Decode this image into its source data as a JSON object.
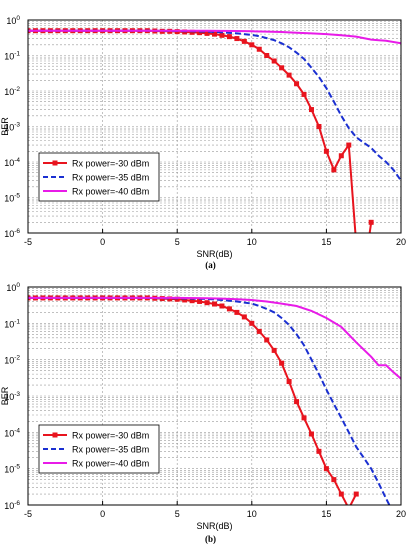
{
  "chart_data": [
    {
      "type": "line",
      "caption": "(a)",
      "xlabel": "SNR(dB)",
      "ylabel": "BER",
      "xlim": [
        -5,
        20
      ],
      "ylim": [
        1e-06,
        1
      ],
      "yscale": "log",
      "xticks": [
        -5,
        0,
        5,
        10,
        15,
        20
      ],
      "yticks": [
        {
          "value": 1,
          "label": "10",
          "exp": "0"
        },
        {
          "value": 0.1,
          "label": "10",
          "exp": "-1"
        },
        {
          "value": 0.01,
          "label": "10",
          "exp": "-2"
        },
        {
          "value": 0.001,
          "label": "10",
          "exp": "-3"
        },
        {
          "value": 0.0001,
          "label": "10",
          "exp": "-4"
        },
        {
          "value": 1e-05,
          "label": "10",
          "exp": "-5"
        },
        {
          "value": 1e-06,
          "label": "10",
          "exp": "-6"
        }
      ],
      "grid": true,
      "legend_position": "lower-left",
      "series": [
        {
          "name": "Rx power=-30 dBm",
          "color": "#e8141e",
          "style": "solid",
          "marker": "square",
          "x": [
            -5,
            -4.5,
            -4,
            -3.5,
            -3,
            -2.5,
            -2,
            -1.5,
            -1,
            -0.5,
            0,
            0.5,
            1,
            1.5,
            2,
            2.5,
            3,
            3.5,
            4,
            4.5,
            5,
            5.5,
            6,
            6.5,
            7,
            7.5,
            8,
            8.5,
            9,
            9.5,
            10,
            10.5,
            11,
            11.5,
            12,
            12.5,
            13,
            13.5,
            14,
            14.5,
            15,
            15.5,
            16,
            16.5,
            17,
            17.5,
            18
          ],
          "y": [
            0.5,
            0.5,
            0.5,
            0.5,
            0.5,
            0.5,
            0.5,
            0.5,
            0.5,
            0.5,
            0.5,
            0.5,
            0.5,
            0.5,
            0.5,
            0.5,
            0.5,
            0.49,
            0.48,
            0.48,
            0.47,
            0.46,
            0.45,
            0.44,
            0.42,
            0.4,
            0.37,
            0.34,
            0.3,
            0.25,
            0.2,
            0.15,
            0.1,
            0.07,
            0.045,
            0.028,
            0.016,
            0.008,
            0.003,
            0.001,
            0.0002,
            6e-05,
            0.00015,
            0.0003,
            5e-07,
            7e-08,
            2e-06
          ]
        },
        {
          "name": "Rx power=-35 dBm",
          "color": "#1a2fd1",
          "style": "dashed",
          "marker": "none",
          "x": [
            -5,
            -2.5,
            0,
            2.5,
            5,
            6,
            7,
            8,
            9,
            10,
            10.5,
            11,
            11.5,
            12,
            12.5,
            13,
            13.5,
            14,
            14.5,
            15,
            15.5,
            16,
            16.5,
            17,
            17.5,
            18,
            18.5,
            19,
            19.5,
            20
          ],
          "y": [
            0.5,
            0.5,
            0.5,
            0.5,
            0.49,
            0.48,
            0.47,
            0.45,
            0.42,
            0.38,
            0.35,
            0.31,
            0.27,
            0.22,
            0.17,
            0.12,
            0.08,
            0.045,
            0.025,
            0.012,
            0.005,
            0.002,
            0.0009,
            0.0005,
            0.00035,
            0.00025,
            0.00015,
            0.0001,
            6e-05,
            3e-05
          ]
        },
        {
          "name": "Rx power=-40 dBm",
          "color": "#e81be8",
          "style": "solid",
          "marker": "none",
          "x": [
            -5,
            -2.5,
            0,
            2.5,
            5,
            7,
            9,
            10,
            11,
            12,
            13,
            14,
            15,
            16,
            17,
            18,
            19,
            20
          ],
          "y": [
            0.5,
            0.5,
            0.5,
            0.5,
            0.5,
            0.5,
            0.49,
            0.48,
            0.47,
            0.46,
            0.44,
            0.42,
            0.4,
            0.37,
            0.34,
            0.28,
            0.26,
            0.22
          ]
        }
      ]
    },
    {
      "type": "line",
      "caption": "(b)",
      "xlabel": "SNR(dB)",
      "ylabel": "BER",
      "xlim": [
        -5,
        20
      ],
      "ylim": [
        1e-06,
        1
      ],
      "yscale": "log",
      "xticks": [
        -5,
        0,
        5,
        10,
        15,
        20
      ],
      "yticks": [
        {
          "value": 1,
          "label": "10",
          "exp": "0"
        },
        {
          "value": 0.1,
          "label": "10",
          "exp": "-1"
        },
        {
          "value": 0.01,
          "label": "10",
          "exp": "-2"
        },
        {
          "value": 0.001,
          "label": "10",
          "exp": "-3"
        },
        {
          "value": 0.0001,
          "label": "10",
          "exp": "-4"
        },
        {
          "value": 1e-05,
          "label": "10",
          "exp": "-5"
        },
        {
          "value": 1e-06,
          "label": "10",
          "exp": "-6"
        }
      ],
      "grid": true,
      "legend_position": "lower-left",
      "series": [
        {
          "name": "Rx power=-30 dBm",
          "color": "#e8141e",
          "style": "solid",
          "marker": "square",
          "x": [
            -5,
            -4.5,
            -4,
            -3.5,
            -3,
            -2.5,
            -2,
            -1.5,
            -1,
            -0.5,
            0,
            0.5,
            1,
            1.5,
            2,
            2.5,
            3,
            3.5,
            4,
            4.5,
            5,
            5.5,
            6,
            6.5,
            7,
            7.5,
            8,
            8.5,
            9,
            9.5,
            10,
            10.5,
            11,
            11.5,
            12,
            12.5,
            13,
            13.5,
            14,
            14.5,
            15,
            15.5,
            16,
            16.5,
            17
          ],
          "y": [
            0.5,
            0.5,
            0.5,
            0.5,
            0.5,
            0.5,
            0.5,
            0.5,
            0.5,
            0.5,
            0.5,
            0.5,
            0.5,
            0.5,
            0.5,
            0.5,
            0.5,
            0.49,
            0.48,
            0.47,
            0.46,
            0.44,
            0.42,
            0.4,
            0.37,
            0.34,
            0.3,
            0.25,
            0.2,
            0.15,
            0.1,
            0.06,
            0.035,
            0.018,
            0.008,
            0.0025,
            0.0007,
            0.00025,
            9e-05,
            3e-05,
            1e-05,
            5e-06,
            2e-06,
            8e-07,
            2e-06
          ]
        },
        {
          "name": "Rx power=-35 dBm",
          "color": "#1a2fd1",
          "style": "dashed",
          "marker": "none",
          "x": [
            -5,
            -2.5,
            0,
            2.5,
            5,
            6,
            7,
            8,
            9,
            10,
            10.5,
            11,
            11.5,
            12,
            12.5,
            13,
            13.5,
            14,
            14.5,
            15,
            15.5,
            16,
            16.5,
            17,
            17.5,
            18,
            18.5,
            19,
            19.5,
            20
          ],
          "y": [
            0.5,
            0.5,
            0.5,
            0.5,
            0.49,
            0.48,
            0.47,
            0.44,
            0.4,
            0.35,
            0.3,
            0.25,
            0.2,
            0.14,
            0.09,
            0.05,
            0.025,
            0.01,
            0.004,
            0.0015,
            0.0006,
            0.00025,
            0.0001,
            4e-05,
            2e-05,
            1e-05,
            4e-06,
            1.5e-06,
            6e-07,
            6e-07
          ]
        },
        {
          "name": "Rx power=-40 dBm",
          "color": "#e81be8",
          "style": "solid",
          "marker": "none",
          "x": [
            -5,
            -2.5,
            0,
            2.5,
            5,
            7,
            8,
            9,
            10,
            11,
            12,
            13,
            14,
            15,
            16,
            17,
            18,
            18.5,
            19,
            19.5,
            20
          ],
          "y": [
            0.5,
            0.5,
            0.5,
            0.5,
            0.5,
            0.49,
            0.48,
            0.46,
            0.44,
            0.4,
            0.35,
            0.3,
            0.22,
            0.14,
            0.08,
            0.03,
            0.012,
            0.007,
            0.007,
            0.0045,
            0.003
          ]
        }
      ]
    }
  ]
}
